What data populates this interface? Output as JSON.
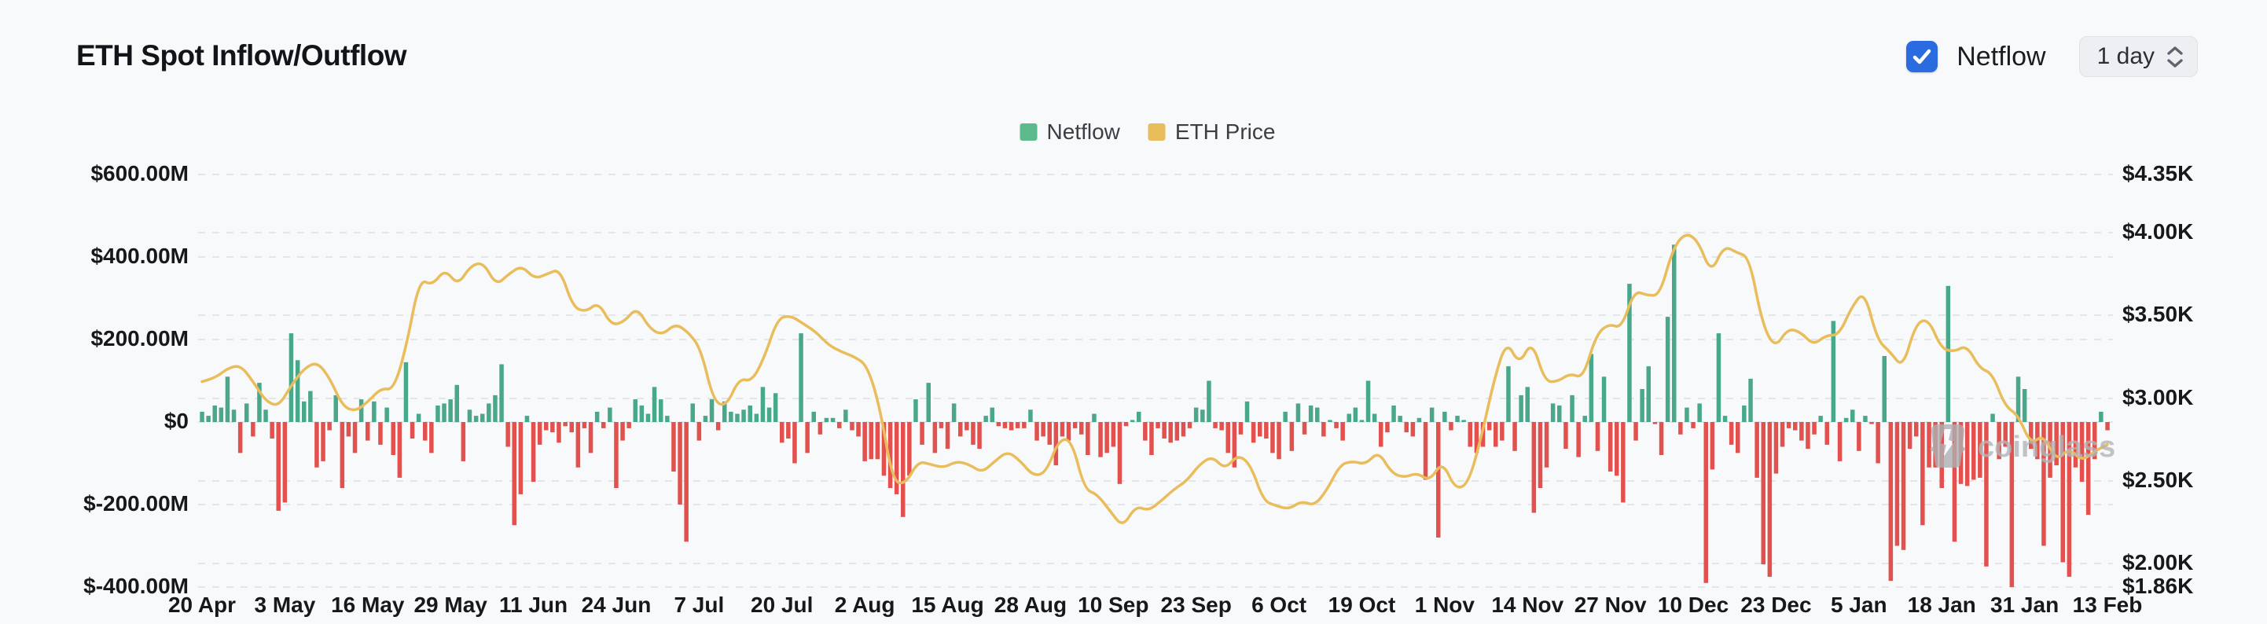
{
  "header": {
    "title": "ETH Spot Inflow/Outflow",
    "netflow_toggle": {
      "label": "Netflow",
      "checked": true,
      "checkbox_color": "#2a6be0"
    },
    "interval_select": {
      "value": "1 day"
    }
  },
  "watermark": {
    "text": "coinglass"
  },
  "chart_data": {
    "type": "combo",
    "title": "ETH Spot Inflow/Outflow",
    "legend_position": "top-center",
    "grid": {
      "horizontal_dashed": true,
      "color": "#e4e5e8"
    },
    "legend": [
      {
        "label": "Netflow",
        "color": "#5cba8c"
      },
      {
        "label": "ETH Price",
        "color": "#e9bd5c"
      }
    ],
    "x_axis": {
      "tick_labels": [
        "20 Apr",
        "3 May",
        "16 May",
        "29 May",
        "11 Jun",
        "24 Jun",
        "7 Jul",
        "20 Jul",
        "2 Aug",
        "15 Aug",
        "28 Aug",
        "10 Sep",
        "23 Sep",
        "6 Oct",
        "19 Oct",
        "1 Nov",
        "14 Nov",
        "27 Nov",
        "10 Dec",
        "23 Dec",
        "5 Jan",
        "18 Jan",
        "31 Jan",
        "13 Feb"
      ],
      "days_per_tick": 13,
      "total_days": 300
    },
    "left_axis": {
      "ticks": [
        {
          "label": "$600.00M",
          "value_m": 600
        },
        {
          "label": "$400.00M",
          "value_m": 400
        },
        {
          "label": "$200.00M",
          "value_m": 200
        },
        {
          "label": "$0",
          "value_m": 0
        },
        {
          "label": "$-200.00M",
          "value_m": -200
        },
        {
          "label": "$-400.00M",
          "value_m": -400
        }
      ]
    },
    "right_axis": {
      "ticks": [
        {
          "label": "$4.35K",
          "value_k": 4.35
        },
        {
          "label": "$4.00K",
          "value_k": 4.0
        },
        {
          "label": "$3.50K",
          "value_k": 3.5
        },
        {
          "label": "$3.00K",
          "value_k": 3.0
        },
        {
          "label": "$2.50K",
          "value_k": 2.5
        },
        {
          "label": "$2.00K",
          "value_k": 2.0
        },
        {
          "label": "$1.86K",
          "value_k": 1.86
        }
      ]
    },
    "series": [
      {
        "name": "Netflow",
        "type": "bar",
        "unit": "USD million per day",
        "color_positive": "#49a88c",
        "color_negative": "#e2514d",
        "values_m": [
          25,
          15,
          40,
          35,
          110,
          30,
          -75,
          45,
          -35,
          95,
          30,
          -40,
          -215,
          -195,
          215,
          150,
          50,
          75,
          -110,
          -95,
          -20,
          65,
          -160,
          -35,
          -75,
          55,
          -45,
          50,
          -55,
          35,
          -80,
          -135,
          145,
          -40,
          20,
          -45,
          -75,
          40,
          45,
          55,
          90,
          -95,
          30,
          15,
          20,
          45,
          65,
          140,
          -60,
          -250,
          -175,
          15,
          -145,
          -55,
          -20,
          -25,
          -50,
          -10,
          -25,
          -110,
          -15,
          -75,
          25,
          -15,
          35,
          -160,
          -45,
          -15,
          55,
          40,
          20,
          85,
          55,
          15,
          -120,
          -200,
          -290,
          45,
          -45,
          15,
          55,
          -20,
          50,
          25,
          20,
          30,
          40,
          20,
          85,
          35,
          70,
          -50,
          -40,
          -100,
          215,
          -75,
          25,
          -30,
          10,
          10,
          -15,
          30,
          -20,
          -35,
          -95,
          -90,
          -90,
          -130,
          -160,
          -175,
          -230,
          -130,
          55,
          -55,
          95,
          -75,
          -15,
          -65,
          45,
          -35,
          -20,
          -55,
          -65,
          15,
          35,
          -10,
          -15,
          -20,
          -15,
          -15,
          30,
          -45,
          -35,
          -55,
          -105,
          -35,
          -45,
          -15,
          -30,
          -80,
          20,
          -85,
          -75,
          -60,
          -150,
          -10,
          5,
          25,
          -45,
          -80,
          -15,
          -40,
          -50,
          -45,
          -35,
          -15,
          35,
          30,
          100,
          -15,
          -20,
          -75,
          -110,
          -30,
          50,
          -50,
          -35,
          -40,
          -75,
          -90,
          25,
          -70,
          45,
          -30,
          40,
          35,
          -35,
          5,
          -15,
          -45,
          20,
          35,
          5,
          100,
          20,
          -60,
          -25,
          40,
          15,
          -25,
          -35,
          10,
          -140,
          35,
          -280,
          25,
          -20,
          15,
          5,
          -60,
          -75,
          -60,
          -20,
          -60,
          -45,
          135,
          -70,
          65,
          85,
          -220,
          -160,
          -110,
          45,
          40,
          -65,
          65,
          -85,
          15,
          165,
          -70,
          110,
          -120,
          -130,
          -195,
          335,
          -45,
          80,
          135,
          -5,
          -80,
          255,
          430,
          -30,
          35,
          -15,
          45,
          -390,
          -115,
          215,
          15,
          -55,
          -75,
          40,
          105,
          -135,
          -345,
          -375,
          -125,
          -60,
          -15,
          -20,
          -45,
          -65,
          -30,
          15,
          -55,
          245,
          -95,
          10,
          30,
          -70,
          15,
          -5,
          -100,
          160,
          -385,
          -300,
          -310,
          -65,
          -35,
          -250,
          -110,
          -110,
          -160,
          330,
          -290,
          -150,
          -155,
          -140,
          -135,
          -350,
          20,
          -90,
          -60,
          -400,
          110,
          80,
          -65,
          -90,
          -300,
          -135,
          -105,
          -340,
          -375,
          -110,
          -145,
          -225,
          -90,
          25,
          -20
        ]
      },
      {
        "name": "ETH Price",
        "type": "line",
        "unit": "USD thousand",
        "color": "#e9bd5c",
        "sample_interval_days": 2,
        "values_k": [
          3.1,
          3.12,
          3.18,
          3.2,
          3.1,
          2.98,
          2.95,
          3.08,
          3.18,
          3.22,
          3.12,
          2.95,
          2.92,
          2.98,
          3.06,
          3.05,
          3.32,
          3.72,
          3.68,
          3.78,
          3.68,
          3.8,
          3.82,
          3.68,
          3.75,
          3.8,
          3.72,
          3.75,
          3.78,
          3.55,
          3.52,
          3.58,
          3.44,
          3.46,
          3.55,
          3.42,
          3.38,
          3.45,
          3.4,
          3.3,
          2.98,
          2.95,
          3.12,
          3.1,
          3.25,
          3.48,
          3.5,
          3.45,
          3.4,
          3.32,
          3.28,
          3.25,
          3.2,
          2.95,
          2.5,
          2.48,
          2.62,
          2.6,
          2.58,
          2.62,
          2.6,
          2.55,
          2.62,
          2.68,
          2.62,
          2.53,
          2.55,
          2.75,
          2.75,
          2.45,
          2.42,
          2.32,
          2.22,
          2.35,
          2.32,
          2.38,
          2.45,
          2.5,
          2.6,
          2.65,
          2.57,
          2.66,
          2.6,
          2.38,
          2.35,
          2.33,
          2.38,
          2.35,
          2.45,
          2.6,
          2.62,
          2.6,
          2.68,
          2.55,
          2.52,
          2.55,
          2.5,
          2.62,
          2.45,
          2.48,
          2.75,
          3.1,
          3.35,
          3.2,
          3.35,
          3.1,
          3.1,
          3.15,
          3.12,
          3.38,
          3.45,
          3.42,
          3.65,
          3.62,
          3.62,
          3.9,
          4.0,
          3.95,
          3.75,
          3.92,
          3.88,
          3.85,
          3.45,
          3.3,
          3.42,
          3.4,
          3.32,
          3.38,
          3.38,
          3.55,
          3.65,
          3.35,
          3.28,
          3.18,
          3.45,
          3.48,
          3.3,
          3.28,
          3.32,
          3.18,
          3.15,
          2.95,
          2.9,
          2.72,
          2.78,
          2.62,
          2.7,
          2.62,
          2.68,
          2.72
        ]
      }
    ]
  }
}
